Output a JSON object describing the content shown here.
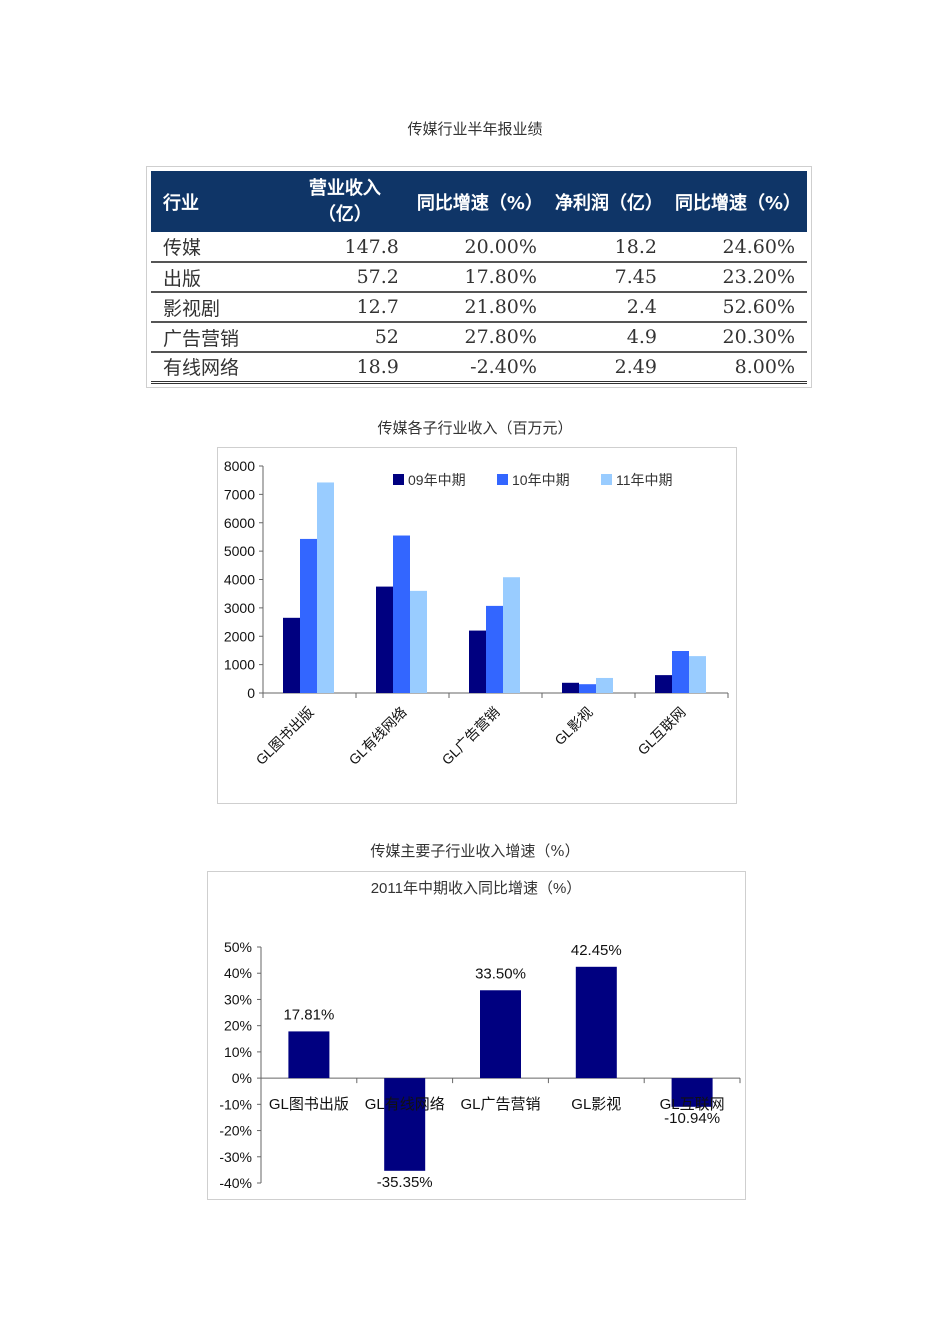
{
  "captions": {
    "table_title": "传媒行业半年报业绩",
    "chart1_title": "传媒各子行业收入（百万元）",
    "chart2_title": "传媒主要子行业收入增速（%）"
  },
  "table": {
    "headers": [
      "行业",
      "营业收入（亿）",
      "同比增速（%）",
      "净利润（亿）",
      "同比增速（%）"
    ],
    "header_line1": "营业收入",
    "header_line2": "（亿）",
    "rows": [
      [
        "传媒",
        "147.8",
        "20.00%",
        "18.2",
        "24.60%"
      ],
      [
        "出版",
        "57.2",
        "17.80%",
        "7.45",
        "23.20%"
      ],
      [
        "影视剧",
        "12.7",
        "21.80%",
        "2.4",
        "52.60%"
      ],
      [
        "广告营销",
        "52",
        "27.80%",
        "4.9",
        "20.30%"
      ],
      [
        "有线网络",
        "18.9",
        "-2.40%",
        "2.49",
        "8.00%"
      ]
    ],
    "header_bg": "#0f3567"
  },
  "chart_data": [
    {
      "type": "bar",
      "title": "传媒各子行业收入（百万元）",
      "categories": [
        "GL图书出版",
        "GL有线网络",
        "GL广告营销",
        "GL影视",
        "GL互联网"
      ],
      "series": [
        {
          "name": "09年中期",
          "color": "#000080",
          "values": [
            2650,
            3750,
            2200,
            360,
            630
          ]
        },
        {
          "name": "10年中期",
          "color": "#3366ff",
          "values": [
            5430,
            5550,
            3070,
            310,
            1480
          ]
        },
        {
          "name": "11年中期",
          "color": "#99ccff",
          "values": [
            7420,
            3600,
            4080,
            530,
            1300
          ]
        }
      ],
      "xlabel": "",
      "ylabel": "",
      "ylim": [
        0,
        8000
      ],
      "yticks": [
        "0",
        "1000",
        "2000",
        "3000",
        "4000",
        "5000",
        "6000",
        "7000",
        "8000"
      ],
      "legend_position": "top-right",
      "grid": false
    },
    {
      "type": "bar",
      "title": "2011年中期收入同比增速（%）",
      "categories": [
        "GL图书出版",
        "GL有线网络",
        "GL广告营销",
        "GL影视",
        "GL互联网"
      ],
      "values": [
        17.81,
        -35.35,
        33.5,
        42.45,
        -10.94
      ],
      "labels": [
        "17.81%",
        "-35.35%",
        "33.50%",
        "42.45%",
        "-10.94%"
      ],
      "color": "#000080",
      "xlabel": "",
      "ylabel": "",
      "ylim": [
        -40,
        50
      ],
      "yticks": [
        "50%",
        "40%",
        "30%",
        "20%",
        "10%",
        "0%",
        "-10%",
        "-20%",
        "-30%",
        "-40%"
      ],
      "grid": false
    }
  ]
}
